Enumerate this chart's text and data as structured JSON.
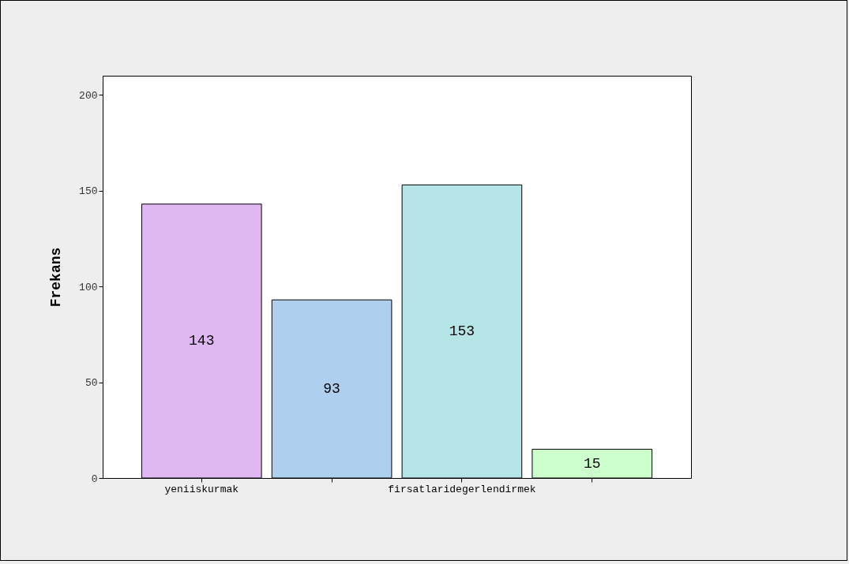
{
  "chart_data": {
    "type": "bar",
    "ylabel": "Frekans",
    "categories": [
      "yeniiskurmak",
      null,
      "firsatlaridegerlendirmek",
      null
    ],
    "values": [
      143,
      93,
      153,
      15
    ],
    "colors": [
      "#dfb8f2",
      "#aecfee",
      "#b5e5e7",
      "#ccffcc"
    ],
    "ylim": [
      0,
      210
    ],
    "yticks": [
      0,
      50,
      100,
      150,
      200
    ],
    "data_labels": true,
    "grid": false
  }
}
